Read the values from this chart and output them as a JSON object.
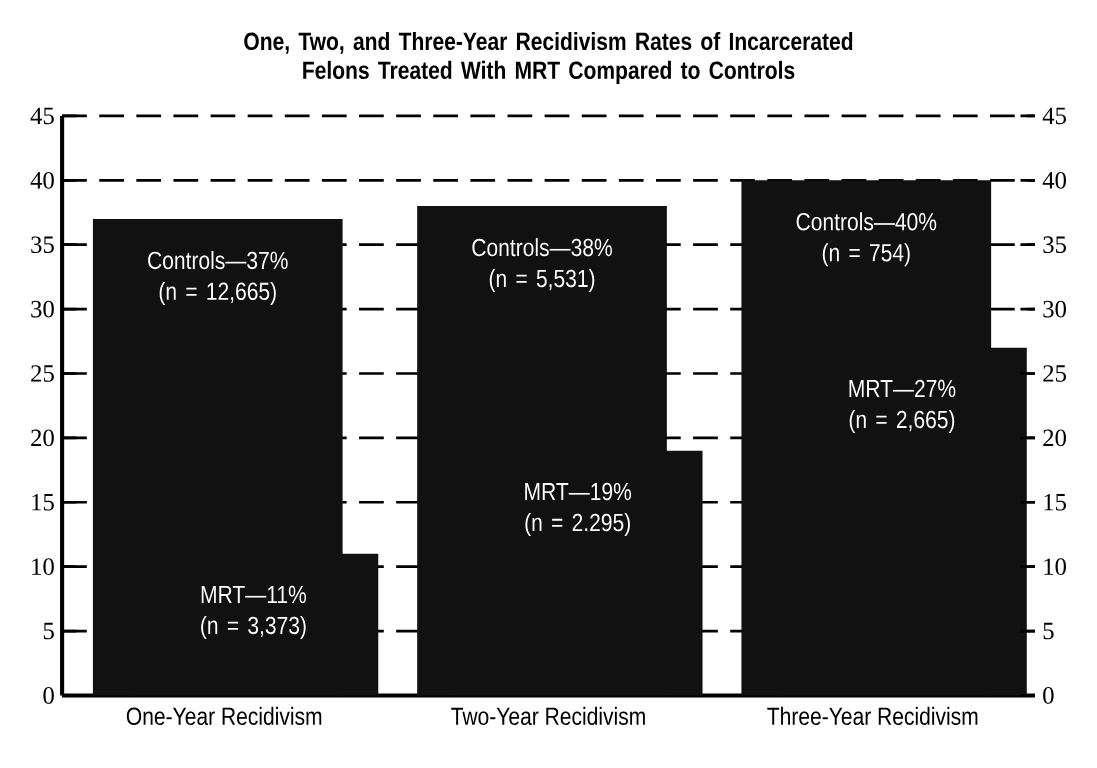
{
  "chart_data": {
    "type": "bar",
    "title": "One, Two, and Three-Year Recidivism Rates of Incarcerated Felons Treated With MRT Compared to Controls",
    "categories": [
      "One-Year Recidivism",
      "Two-Year Recidivism",
      "Three-Year Recidivism"
    ],
    "series": [
      {
        "color": "#111111",
        "values": [
          37,
          38,
          40
        ],
        "value_labels": [
          "Controls—37% (n = 12,665)",
          "Controls—38% (n = 5,531)",
          "Controls—40% (n = 754)"
        ]
      },
      {
        "color": "#111111",
        "values": [
          11,
          19,
          27
        ],
        "value_labels": [
          "MRT—11% (n = 3,373)",
          "MRT—19% (n = 2.295)",
          "MRT—27% (n = 2,665)"
        ]
      }
    ],
    "ylim": [
      0,
      45
    ],
    "yticks": [
      0,
      5,
      10,
      15,
      20,
      25,
      30,
      35,
      40,
      45
    ],
    "y2lim": [
      0,
      45
    ],
    "y2ticks": [
      0,
      5,
      10,
      15,
      20,
      25,
      30,
      35,
      40,
      45
    ],
    "grid": "y"
  }
}
